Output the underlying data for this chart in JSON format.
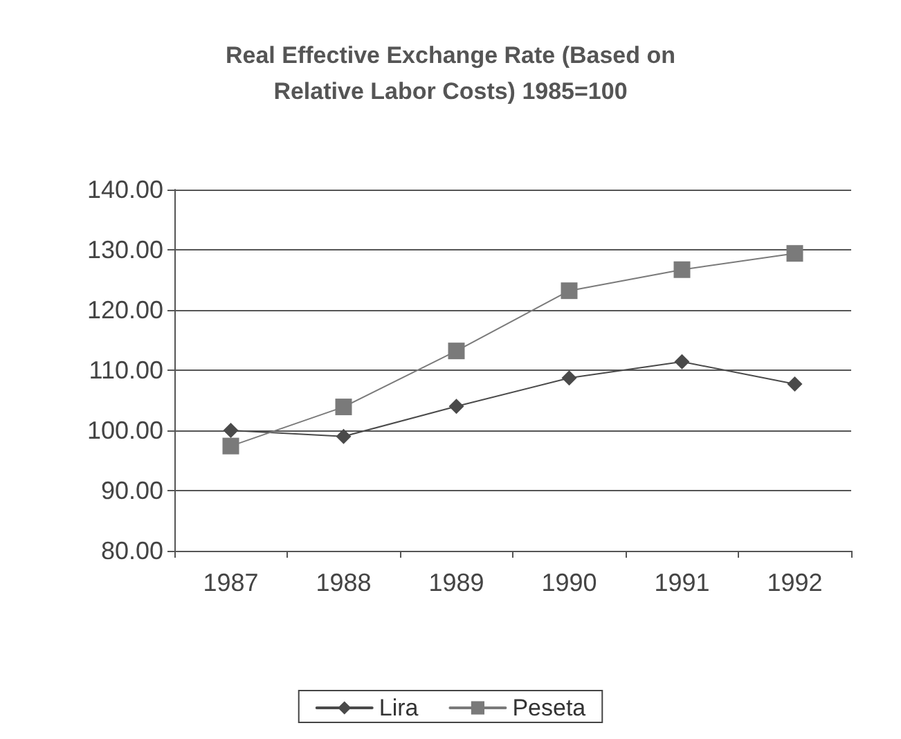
{
  "chart_data": {
    "type": "line",
    "title": "Real Effective Exchange Rate (Based on\nRelative Labor Costs) 1985=100",
    "categories": [
      "1987",
      "1988",
      "1989",
      "1990",
      "1991",
      "1992"
    ],
    "series": [
      {
        "name": "Lira",
        "color": "#4a4a4a",
        "marker": "diamond",
        "values": [
          100,
          99,
          104,
          108.7,
          111.4,
          107.7
        ]
      },
      {
        "name": "Peseta",
        "color": "#7a7a7a",
        "marker": "square",
        "values": [
          97.4,
          103.9,
          113.2,
          123.2,
          126.7,
          129.4
        ]
      }
    ],
    "ylim": [
      80,
      140
    ],
    "yticks": [
      {
        "value": 80,
        "label": "80.00"
      },
      {
        "value": 90,
        "label": "90.00"
      },
      {
        "value": 100,
        "label": "100.00"
      },
      {
        "value": 110,
        "label": "110.00"
      },
      {
        "value": 120,
        "label": "120.00"
      },
      {
        "value": 130,
        "label": "130.00"
      },
      {
        "value": 140,
        "label": "140.00"
      }
    ],
    "grid": "y",
    "legend": "bottom",
    "line_style": "solid"
  }
}
